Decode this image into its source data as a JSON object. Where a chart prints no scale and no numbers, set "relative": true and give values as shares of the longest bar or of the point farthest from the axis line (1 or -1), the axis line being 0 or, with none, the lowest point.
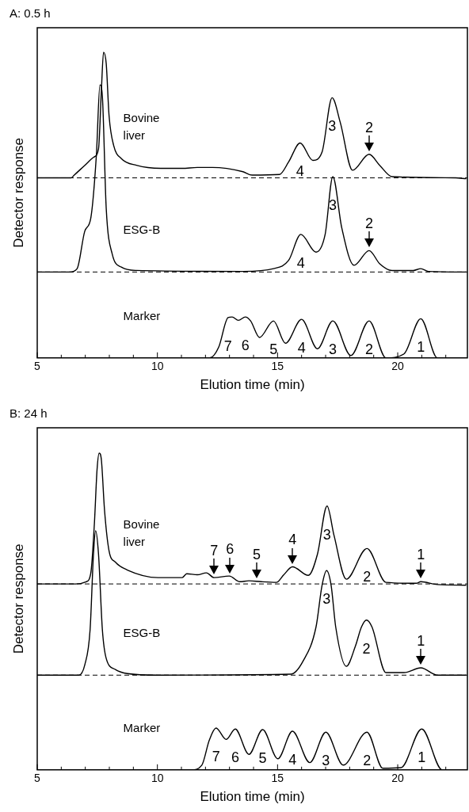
{
  "chart_data": [
    {
      "type": "line",
      "title": "A: 0.5 h",
      "xlabel": "Elution time (min)",
      "ylabel": "Detector response",
      "relative": true,
      "marker": "none",
      "line_style": "solid",
      "xlim": [
        5,
        22.9
      ],
      "xticks": [
        5,
        {
          "value": 6,
          "label": null
        },
        {
          "value": 7,
          "label": null
        },
        {
          "value": 8,
          "label": null
        },
        {
          "value": 9,
          "label": null
        },
        10,
        {
          "value": 11,
          "label": null
        },
        {
          "value": 12,
          "label": null
        },
        {
          "value": 13,
          "label": null
        },
        {
          "value": 14,
          "label": null
        },
        15,
        {
          "value": 16,
          "label": null
        },
        {
          "value": 17,
          "label": null
        },
        {
          "value": 18,
          "label": null
        },
        {
          "value": 19,
          "label": null
        },
        20,
        {
          "value": 21,
          "label": null
        },
        {
          "value": 22,
          "label": null
        }
      ],
      "series": [
        {
          "name": "Bovine liver",
          "color": "#000000",
          "x": [
            5.0,
            6.41,
            6.54,
            6.98,
            7.36,
            7.55,
            7.67,
            7.76,
            7.87,
            7.99,
            8.18,
            8.5,
            9.13,
            10.14,
            11.03,
            11.66,
            12.29,
            13.56,
            13.94,
            15.08,
            15.46,
            15.94,
            16.47,
            16.85,
            17.27,
            17.61,
            18.12,
            18.81,
            19.25,
            19.76,
            22.41,
            22.85
          ],
          "values": [
            0.589,
            0.589,
            0.598,
            0.63,
            0.657,
            0.684,
            0.877,
            1.0,
            0.963,
            0.791,
            0.695,
            0.652,
            0.63,
            0.62,
            0.62,
            0.623,
            0.623,
            0.609,
            0.598,
            0.6,
            0.641,
            0.703,
            0.646,
            0.673,
            0.851,
            0.77,
            0.614,
            0.666,
            0.63,
            0.593,
            0.589,
            0.586
          ]
        },
        {
          "name": "ESG-B",
          "color": "#000000",
          "x": [
            5.0,
            6.35,
            6.66,
            6.98,
            7.23,
            7.46,
            7.61,
            7.71,
            7.87,
            8.12,
            8.5,
            9.13,
            13.56,
            14.83,
            15.46,
            15.97,
            16.6,
            16.98,
            17.3,
            17.67,
            18.18,
            18.81,
            19.25,
            19.76,
            20.65,
            20.96,
            21.28,
            22.85
          ],
          "values": [
            0.281,
            0.281,
            0.292,
            0.415,
            0.458,
            0.662,
            0.893,
            0.856,
            0.49,
            0.34,
            0.297,
            0.286,
            0.283,
            0.292,
            0.319,
            0.404,
            0.346,
            0.404,
            0.593,
            0.426,
            0.303,
            0.351,
            0.308,
            0.286,
            0.286,
            0.292,
            0.283,
            0.281
          ]
        },
        {
          "name": "Marker",
          "color": "#000000",
          "x": [
            5.0,
            12.18,
            12.55,
            12.94,
            13.11,
            13.37,
            13.66,
            13.88,
            14.25,
            14.83,
            15.33,
            16.0,
            16.66,
            17.3,
            18.05,
            18.81,
            19.51,
            20.26,
            20.96,
            21.65,
            22.85
          ],
          "values": [
            0,
            0,
            0.035,
            0.132,
            0.134,
            0.123,
            0.134,
            0.121,
            0.067,
            0.121,
            0.048,
            0.126,
            0.03,
            0.121,
            0.008,
            0.121,
            0,
            0.013,
            0.128,
            0,
            0
          ]
        }
      ],
      "ref_lines": [
        {
          "axis": "y",
          "value": 0.589,
          "line_style": "dashed"
        },
        {
          "axis": "y",
          "value": 0.281,
          "line_style": "dashed"
        }
      ],
      "annotations": [
        {
          "text": "4",
          "x": 15.94,
          "y": 0.703
        },
        {
          "text": "3",
          "x": 17.27,
          "y": 0.851
        },
        {
          "text": "2",
          "x": 18.81,
          "y": 0.676
        },
        {
          "text": "4",
          "x": 15.97,
          "y": 0.404
        },
        {
          "text": "3",
          "x": 17.3,
          "y": 0.593
        },
        {
          "text": "2",
          "x": 18.81,
          "y": 0.361
        },
        {
          "text": "7",
          "x": 12.94,
          "y": 0.132
        },
        {
          "text": "6",
          "x": 13.66,
          "y": 0.134
        },
        {
          "text": "5",
          "x": 14.83,
          "y": 0.121
        },
        {
          "text": "4",
          "x": 16.0,
          "y": 0.126
        },
        {
          "text": "3",
          "x": 17.3,
          "y": 0.121
        },
        {
          "text": "2",
          "x": 18.81,
          "y": 0.121
        },
        {
          "text": "1",
          "x": 20.96,
          "y": 0.128
        }
      ]
    },
    {
      "type": "line",
      "title": "B: 24 h",
      "xlabel": "Elution time (min)",
      "ylabel": "Detector response",
      "relative": true,
      "marker": "none",
      "line_style": "solid",
      "xlim": [
        5,
        22.9
      ],
      "xticks": [
        5,
        {
          "value": 6,
          "label": null
        },
        {
          "value": 7,
          "label": null
        },
        {
          "value": 8,
          "label": null
        },
        {
          "value": 9,
          "label": null
        },
        10,
        {
          "value": 11,
          "label": null
        },
        {
          "value": 12,
          "label": null
        },
        {
          "value": 13,
          "label": null
        },
        {
          "value": 14,
          "label": null
        },
        15,
        {
          "value": 16,
          "label": null
        },
        {
          "value": 17,
          "label": null
        },
        {
          "value": 18,
          "label": null
        },
        {
          "value": 19,
          "label": null
        },
        20,
        {
          "value": 21,
          "label": null
        },
        {
          "value": 22,
          "label": null
        }
      ],
      "series": [
        {
          "name": "Bovine liver",
          "color": "#000000",
          "x": [
            5.0,
            6.6,
            7.04,
            7.23,
            7.38,
            7.49,
            7.58,
            7.67,
            7.8,
            7.99,
            8.25,
            8.75,
            10.02,
            11.03,
            11.22,
            11.66,
            12.04,
            12.36,
            12.99,
            13.43,
            13.81,
            14.32,
            14.95,
            15.26,
            15.62,
            16.28,
            16.66,
            17.06,
            17.35,
            17.86,
            18.72,
            19.51,
            20.77,
            20.96,
            21.65,
            22.85
          ],
          "values": [
            0.587,
            0.587,
            0.594,
            0.622,
            0.78,
            0.949,
            1.0,
            0.978,
            0.82,
            0.691,
            0.656,
            0.631,
            0.607,
            0.607,
            0.619,
            0.616,
            0.622,
            0.607,
            0.612,
            0.594,
            0.597,
            0.594,
            0.592,
            0.616,
            0.641,
            0.614,
            0.681,
            0.833,
            0.74,
            0.602,
            0.699,
            0.592,
            0.589,
            0.594,
            0.585,
            0.583
          ]
        },
        {
          "name": "ESG-B",
          "color": "#000000",
          "x": [
            5.0,
            6.73,
            6.98,
            7.2,
            7.34,
            7.43,
            7.55,
            7.71,
            7.87,
            8.25,
            8.75,
            10.02,
            15.55,
            16.05,
            16.6,
            16.85,
            17.04,
            17.23,
            17.42,
            17.86,
            18.24,
            18.49,
            18.7,
            18.93,
            19.51,
            20.26,
            20.96,
            21.65,
            22.85
          ],
          "values": [
            0.299,
            0.299,
            0.332,
            0.443,
            0.681,
            0.755,
            0.681,
            0.443,
            0.352,
            0.317,
            0.304,
            0.299,
            0.302,
            0.342,
            0.451,
            0.582,
            0.629,
            0.582,
            0.451,
            0.327,
            0.391,
            0.451,
            0.473,
            0.451,
            0.307,
            0.307,
            0.322,
            0.299,
            0.299
          ]
        },
        {
          "name": "Marker",
          "color": "#000000",
          "x": [
            5.0,
            11.41,
            11.85,
            12.16,
            12.44,
            12.86,
            13.24,
            13.81,
            14.38,
            15.01,
            15.62,
            16.34,
            17.01,
            17.73,
            18.72,
            19.38,
            20.14,
            21.0,
            21.85,
            22.85
          ],
          "values": [
            0,
            0,
            0.015,
            0.094,
            0.132,
            0.096,
            0.129,
            0.049,
            0.127,
            0.035,
            0.122,
            0.023,
            0.119,
            0.015,
            0.119,
            0.005,
            0.007,
            0.129,
            0,
            0
          ]
        }
      ],
      "ref_lines": [
        {
          "axis": "y",
          "value": 0.587,
          "line_style": "dashed"
        },
        {
          "axis": "y",
          "value": 0.299,
          "line_style": "dashed"
        }
      ],
      "annotations": [
        {
          "text": "7",
          "x": 12.36,
          "y": 0.617
        },
        {
          "text": "6",
          "x": 13.02,
          "y": 0.621
        },
        {
          "text": "5",
          "x": 14.13,
          "y": 0.605
        },
        {
          "text": "4",
          "x": 15.62,
          "y": 0.651
        },
        {
          "text": "3",
          "x": 17.06,
          "y": 0.833
        },
        {
          "text": "2",
          "x": 18.72,
          "y": 0.699
        },
        {
          "text": "1",
          "x": 20.96,
          "y": 0.604
        },
        {
          "text": "3",
          "x": 17.04,
          "y": 0.629
        },
        {
          "text": "2",
          "x": 18.7,
          "y": 0.473
        },
        {
          "text": "1",
          "x": 20.96,
          "y": 0.332
        },
        {
          "text": "7",
          "x": 12.44,
          "y": 0.132
        },
        {
          "text": "6",
          "x": 13.24,
          "y": 0.129
        },
        {
          "text": "5",
          "x": 14.38,
          "y": 0.127
        },
        {
          "text": "4",
          "x": 15.62,
          "y": 0.122
        },
        {
          "text": "3",
          "x": 17.01,
          "y": 0.119
        },
        {
          "text": "2",
          "x": 18.72,
          "y": 0.119
        },
        {
          "text": "1",
          "x": 21.0,
          "y": 0.129
        }
      ]
    }
  ]
}
